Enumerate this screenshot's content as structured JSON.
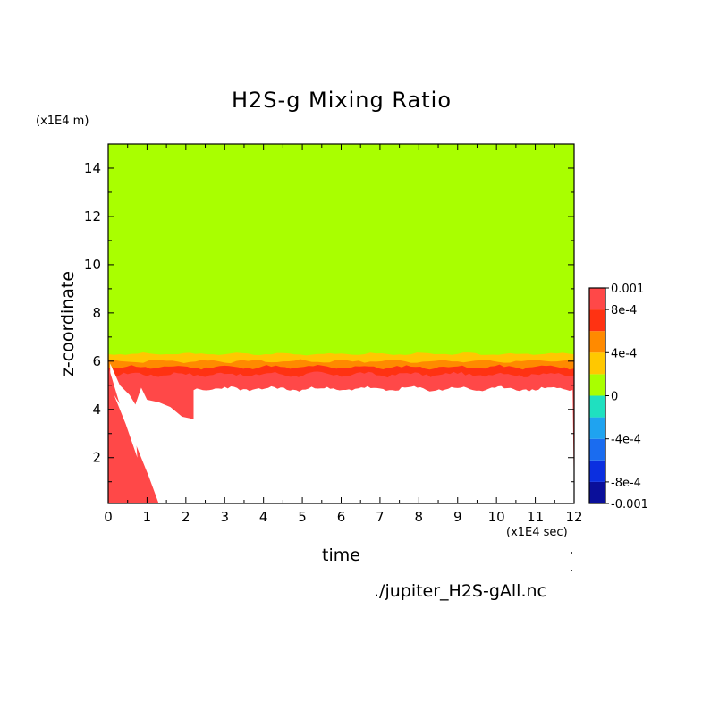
{
  "chart_data": {
    "type": "heatmap",
    "title": "H2S-g Mixing Ratio",
    "xlabel": "time",
    "ylabel": "z-coordinate",
    "x_units": "(x1E4 sec)",
    "y_units": "(x1E4 m)",
    "xlim": [
      0,
      12
    ],
    "ylim": [
      0.1,
      15
    ],
    "xticks": [
      "0",
      "1",
      "2",
      "3",
      "4",
      "5",
      "6",
      "7",
      "8",
      "9",
      "10",
      "11",
      "12"
    ],
    "yticks": [
      "2",
      "4",
      "6",
      "8",
      "10",
      "12",
      "14"
    ],
    "colorbar": {
      "range": [
        -0.001,
        0.001
      ],
      "tick_labels": [
        "0.001",
        "8e-4",
        "4e-4",
        "0",
        "-4e-4",
        "-8e-4",
        "-0.001"
      ],
      "tick_values": [
        0.001,
        0.0008,
        0.0004,
        0,
        -0.0004,
        -0.0008,
        -0.001
      ],
      "levels": [
        -0.001,
        -0.0008,
        -0.0006,
        -0.0004,
        -0.0002,
        0,
        0.0002,
        0.0004,
        0.0006,
        0.0008,
        0.001
      ],
      "colors": [
        "#0a0f9a",
        "#0b2fe0",
        "#1a6cf0",
        "#1fa3f0",
        "#1fe0c0",
        "#a9ff00",
        "#ffc800",
        "#ff8a00",
        "#ff3212",
        "#ff4848"
      ]
    },
    "regions": [
      {
        "level": "0 to 2e-4",
        "color": "#a9ff00",
        "description_z_range": [
          6.3,
          15
        ]
      },
      {
        "level": "2e-4 to 4e-4",
        "color": "#ffc800",
        "z_top": 6.3,
        "z_bottom": 6.0
      },
      {
        "level": "4e-4 to 6e-4",
        "color": "#ff8a00",
        "z_top": 6.0,
        "z_bottom": 5.8
      },
      {
        "level": "6e-4 to 8e-4",
        "color": "#ff3212",
        "z_top": 5.8,
        "z_bottom": 5.5
      },
      {
        "level": "8e-4 to 1e-3",
        "color": "#ff4848",
        "z_top": 5.5,
        "z_bottom": 4.9
      },
      {
        "level": "above range (blank)",
        "color": "#ffffff",
        "z_top": 4.9,
        "z_bottom": 0.1
      }
    ],
    "grid": false,
    "legend": "colorbar right"
  },
  "text": {
    "title": "H2S-g Mixing Ratio",
    "y_units": "(x1E4 m)",
    "x_units": "(x1E4 sec)",
    "xlabel": "time",
    "ylabel": "z-coordinate",
    "source": "./jupiter_H2S-gAll.nc"
  }
}
